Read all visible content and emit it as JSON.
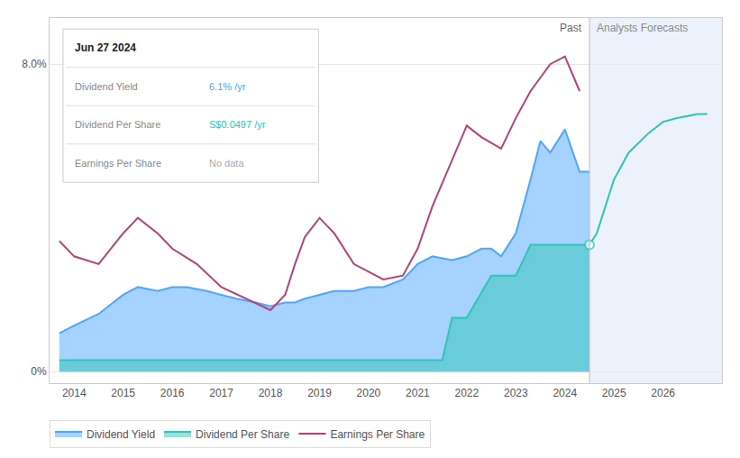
{
  "chart_data": {
    "type": "line",
    "xlim": [
      2013.5,
      2027.2
    ],
    "xticks": [
      2014,
      2015,
      2016,
      2017,
      2018,
      2019,
      2020,
      2021,
      2022,
      2023,
      2024,
      2025,
      2026
    ],
    "ylim": [
      -0.003,
      0.092
    ],
    "yticks": [
      {
        "value": 0.0,
        "label": "0%"
      },
      {
        "value": 0.08,
        "label": "8.0%"
      }
    ],
    "grid": true,
    "legend": "bottom",
    "divider": 2024.5,
    "annotations": [
      {
        "text": "Past",
        "x": 2024.5,
        "side": "left"
      },
      {
        "text": "Analysts Forecasts",
        "x": 2024.5,
        "side": "right"
      }
    ],
    "tooltip": {
      "title": "Jun 27 2024",
      "rows": [
        {
          "label": "Dividend Yield",
          "value": "6.1% /yr",
          "color": "#4da6ff"
        },
        {
          "label": "Dividend Per Share",
          "value": "S$0.0497 /yr",
          "color": "#2ec4b6"
        },
        {
          "label": "Earnings Per Share",
          "value": "No data",
          "color": "#aaaaaa"
        }
      ]
    },
    "series": [
      {
        "name": "Dividend Yield",
        "color": "#4da6ff",
        "type": "area",
        "x": [
          2013.7,
          2014.0,
          2014.5,
          2015.0,
          2015.3,
          2015.7,
          2016.0,
          2016.3,
          2016.7,
          2017.0,
          2017.3,
          2017.7,
          2018.0,
          2018.3,
          2018.5,
          2018.7,
          2019.0,
          2019.3,
          2019.5,
          2019.7,
          2020.0,
          2020.3,
          2020.7,
          2021.0,
          2021.3,
          2021.7,
          2022.0,
          2022.3,
          2022.5,
          2022.7,
          2023.0,
          2023.3,
          2023.5,
          2023.7,
          2024.0,
          2024.3,
          2024.5
        ],
        "values": [
          0.01,
          0.012,
          0.015,
          0.02,
          0.022,
          0.021,
          0.022,
          0.022,
          0.021,
          0.02,
          0.019,
          0.018,
          0.017,
          0.018,
          0.018,
          0.019,
          0.02,
          0.021,
          0.021,
          0.021,
          0.022,
          0.022,
          0.024,
          0.028,
          0.03,
          0.029,
          0.03,
          0.032,
          0.032,
          0.03,
          0.036,
          0.05,
          0.06,
          0.057,
          0.063,
          0.052,
          0.052
        ]
      },
      {
        "name": "Dividend Per Share",
        "color": "#2ec4b6",
        "type": "area",
        "x": [
          2013.7,
          2015.0,
          2016.0,
          2017.0,
          2018.0,
          2019.0,
          2020.0,
          2020.5,
          2021.0,
          2021.5,
          2021.7,
          2022.0,
          2022.5,
          2023.0,
          2023.3,
          2023.7,
          2024.0,
          2024.3,
          2024.5
        ],
        "values": [
          0.003,
          0.003,
          0.003,
          0.003,
          0.003,
          0.003,
          0.003,
          0.003,
          0.003,
          0.003,
          0.014,
          0.014,
          0.025,
          0.025,
          0.033,
          0.033,
          0.033,
          0.033,
          0.033
        ]
      },
      {
        "name": "Earnings Per Share",
        "color": "#b5427a",
        "type": "line",
        "x": [
          2013.7,
          2014.0,
          2014.5,
          2015.0,
          2015.3,
          2015.7,
          2016.0,
          2016.5,
          2017.0,
          2017.5,
          2018.0,
          2018.3,
          2018.5,
          2018.7,
          2019.0,
          2019.3,
          2019.5,
          2019.7,
          2020.0,
          2020.3,
          2020.7,
          2021.0,
          2021.3,
          2021.7,
          2022.0,
          2022.3,
          2022.7,
          2023.0,
          2023.3,
          2023.7,
          2024.0,
          2024.3
        ],
        "values": [
          0.034,
          0.03,
          0.028,
          0.036,
          0.04,
          0.036,
          0.032,
          0.028,
          0.022,
          0.019,
          0.016,
          0.02,
          0.028,
          0.035,
          0.04,
          0.036,
          0.032,
          0.028,
          0.026,
          0.024,
          0.025,
          0.032,
          0.043,
          0.055,
          0.064,
          0.061,
          0.058,
          0.066,
          0.073,
          0.08,
          0.082,
          0.073
        ]
      },
      {
        "color": "#2ec4b6",
        "type": "line",
        "marker": "circle",
        "x": [
          2024.5,
          2024.65,
          2024.8,
          2025.0,
          2025.3,
          2025.7,
          2026.0,
          2026.3,
          2026.7,
          2026.9
        ],
        "values": [
          0.033,
          0.036,
          0.042,
          0.05,
          0.057,
          0.062,
          0.065,
          0.066,
          0.067,
          0.067
        ]
      }
    ]
  }
}
